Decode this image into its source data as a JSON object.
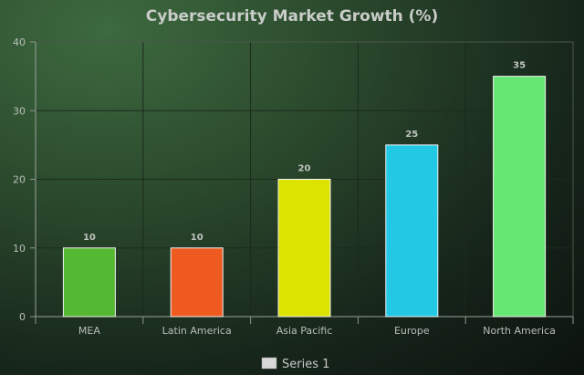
{
  "chart_data": {
    "type": "bar",
    "title": "Cybersecurity Market Growth (%)",
    "categories": [
      "MEA",
      "Latin America",
      "Asia Pacific",
      "Europe",
      "North America"
    ],
    "series": [
      {
        "name": "Series 1",
        "values": [
          10,
          10,
          20,
          25,
          35
        ]
      }
    ],
    "bar_colors": [
      "#55b832",
      "#ee5a1f",
      "#dde300",
      "#22c8e4",
      "#66e673"
    ],
    "ylim": [
      0,
      40
    ],
    "yticks": [
      0,
      10,
      20,
      30,
      40
    ],
    "grid": true,
    "legend_position": "bottom-center",
    "legend_color": "#d8d8d8",
    "xlabel": "",
    "ylabel": ""
  }
}
